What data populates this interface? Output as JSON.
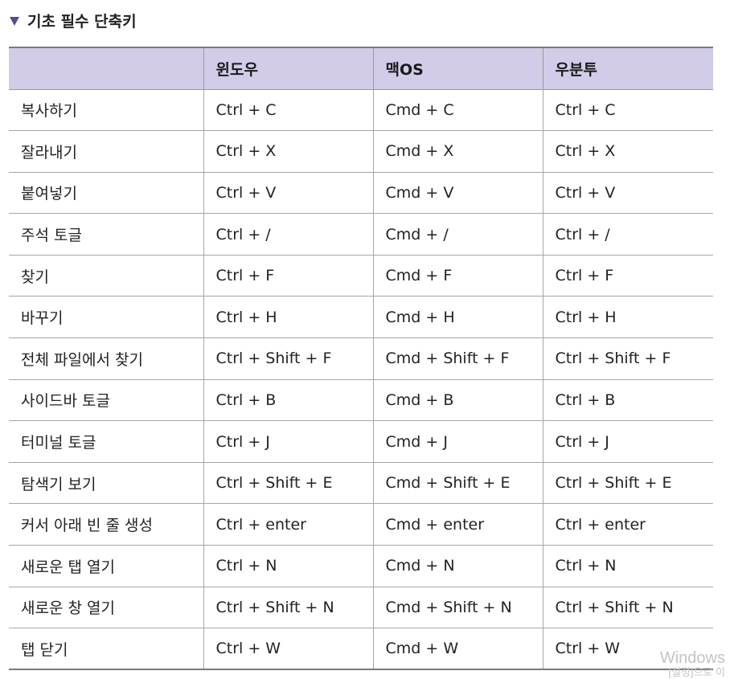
{
  "section": {
    "title": "기초 필수 단축키",
    "icon": "triangle-down-icon",
    "accent_color": "#5a4a9a"
  },
  "table": {
    "header_bg": "#d2cce8",
    "headers": [
      "",
      "윈도우",
      "맥OS",
      "우분투"
    ],
    "rows": [
      [
        "복사하기",
        "Ctrl + C",
        "Cmd + C",
        "Ctrl + C"
      ],
      [
        "잘라내기",
        "Ctrl + X",
        "Cmd + X",
        "Ctrl + X"
      ],
      [
        "붙여넣기",
        "Ctrl + V",
        "Cmd + V",
        "Ctrl + V"
      ],
      [
        "주석 토글",
        "Ctrl + /",
        "Cmd + /",
        "Ctrl + /"
      ],
      [
        "찾기",
        "Ctrl + F",
        "Cmd + F",
        "Ctrl + F"
      ],
      [
        "바꾸기",
        "Ctrl + H",
        "Cmd + H",
        "Ctrl + H"
      ],
      [
        "전체 파일에서 찾기",
        "Ctrl + Shift + F",
        "Cmd + Shift + F",
        "Ctrl + Shift + F"
      ],
      [
        "사이드바 토글",
        "Ctrl + B",
        "Cmd + B",
        "Ctrl + B"
      ],
      [
        "터미널 토글",
        "Ctrl + J",
        "Cmd + J",
        "Ctrl + J"
      ],
      [
        "탐색기 보기",
        "Ctrl + Shift + E",
        "Cmd + Shift + E",
        "Ctrl + Shift + E"
      ],
      [
        "커서 아래 빈 줄 생성",
        "Ctrl + enter",
        "Cmd + enter",
        "Ctrl + enter"
      ],
      [
        "새로운 탭 열기",
        "Ctrl + N",
        "Cmd + N",
        "Ctrl + N"
      ],
      [
        "새로운 창 열기",
        "Ctrl + Shift + N",
        "Cmd + Shift + N",
        "Ctrl + Shift + N"
      ],
      [
        "탭 닫기",
        "Ctrl + W",
        "Cmd + W",
        "Ctrl + W"
      ]
    ]
  },
  "watermark": {
    "line1": "Windows",
    "line2": "[설정]으로 이"
  }
}
